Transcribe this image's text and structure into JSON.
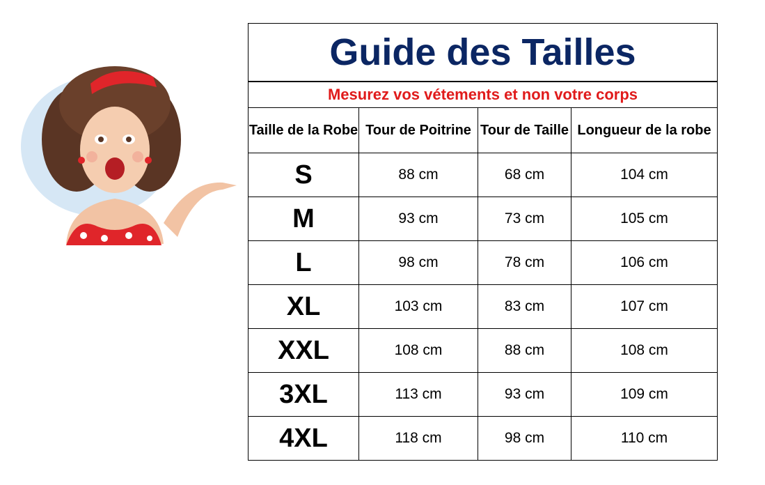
{
  "title": "Guide des Tailles",
  "subtitle": "Mesurez vos vétements et non votre corps",
  "colors": {
    "title": "#0b2663",
    "subtitle": "#e01b1b"
  },
  "illustration": "pin-up-woman-presenting",
  "headers": [
    "Taille de la Robe",
    "Tour de Poitrine",
    "Tour de Taille",
    "Longueur de la robe"
  ],
  "rows": [
    [
      "S",
      "88 cm",
      "68 cm",
      "104 cm"
    ],
    [
      "M",
      "93 cm",
      "73 cm",
      "105 cm"
    ],
    [
      "L",
      "98 cm",
      "78 cm",
      "106 cm"
    ],
    [
      "XL",
      "103 cm",
      "83 cm",
      "107 cm"
    ],
    [
      "XXL",
      "108 cm",
      "88 cm",
      "108 cm"
    ],
    [
      "3XL",
      "113 cm",
      "93 cm",
      "109 cm"
    ],
    [
      "4XL",
      "118 cm",
      "98 cm",
      "110 cm"
    ]
  ]
}
